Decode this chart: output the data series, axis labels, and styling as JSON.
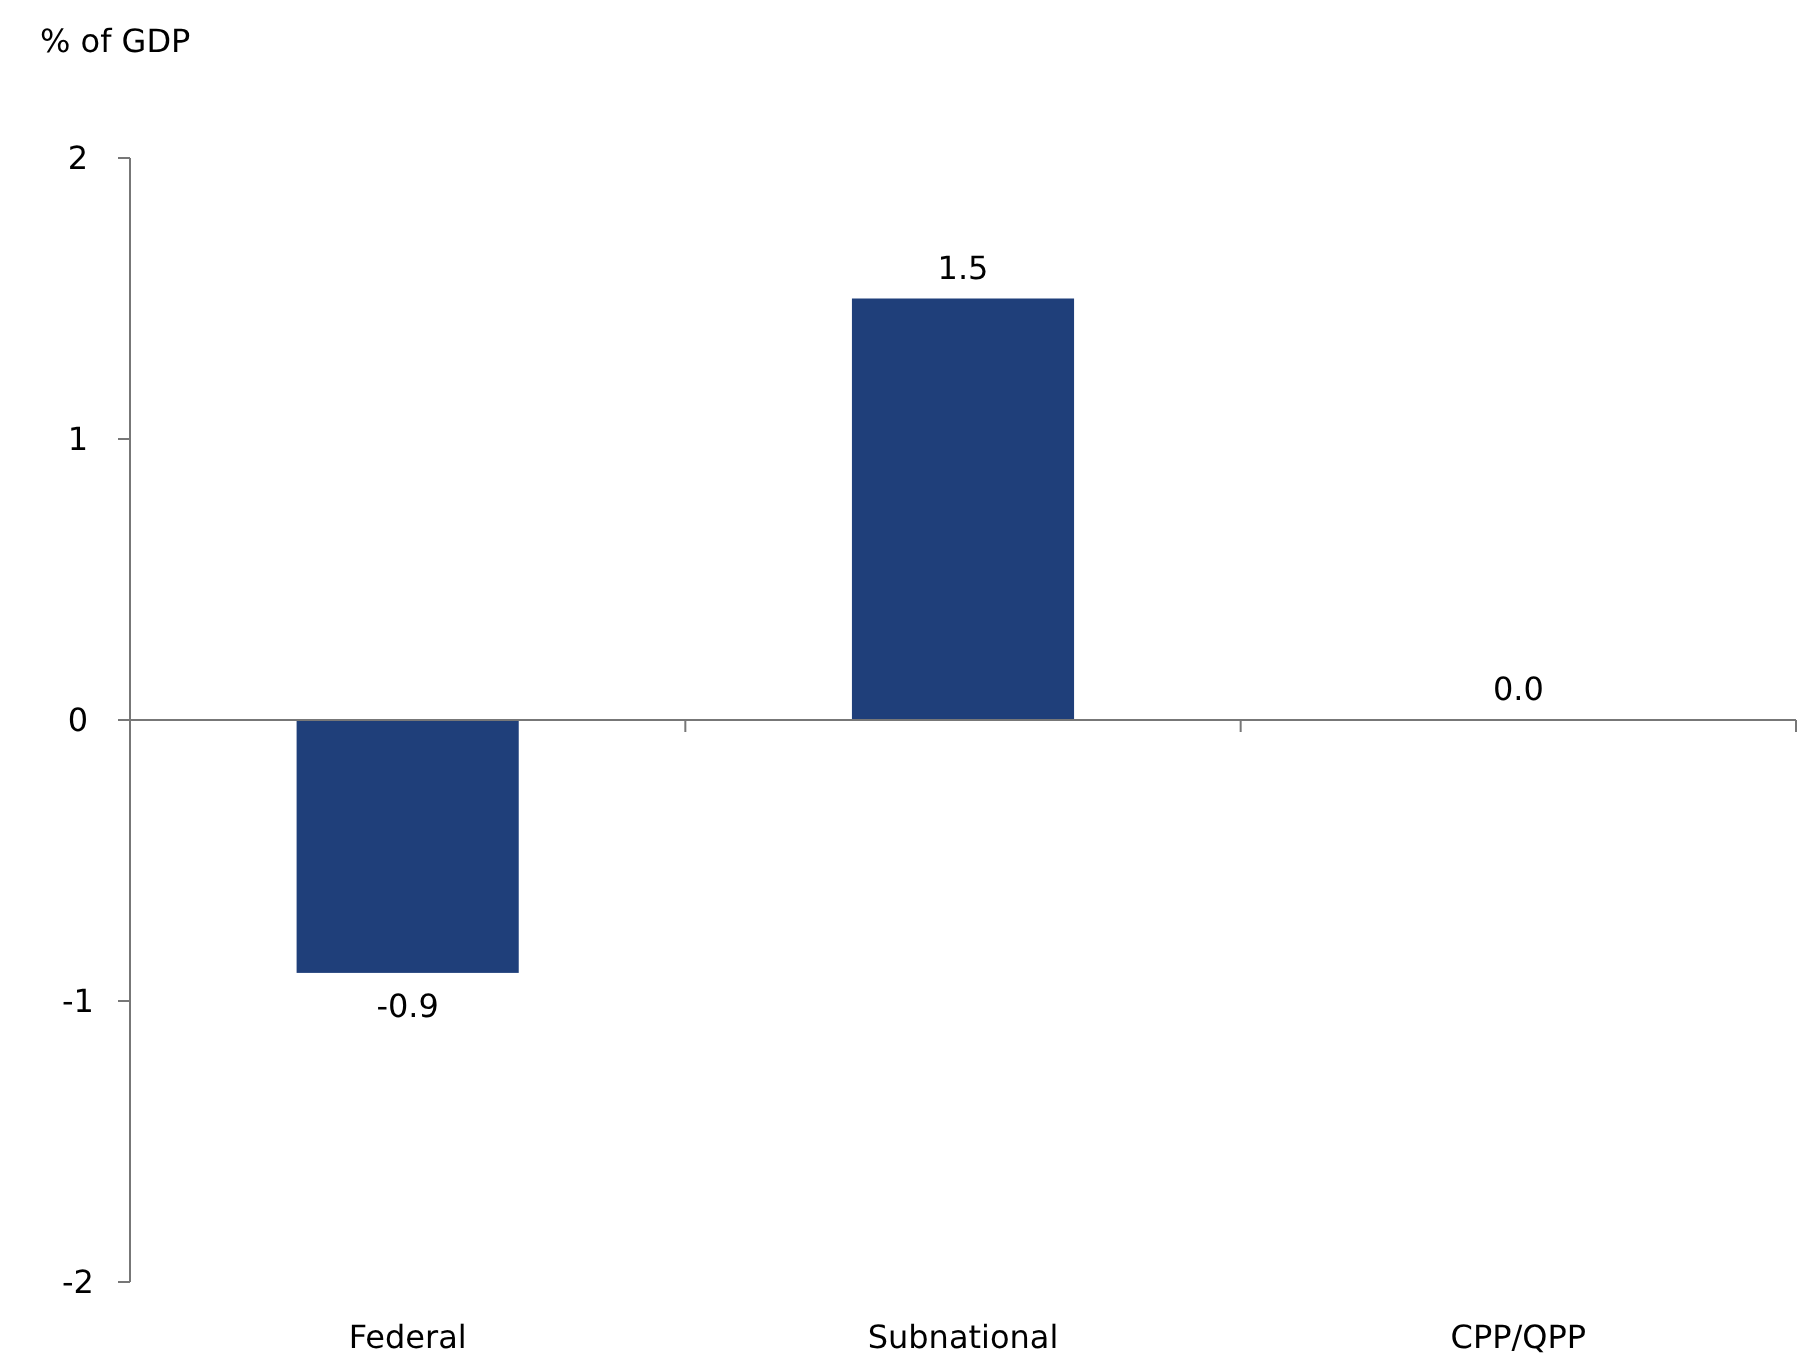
{
  "chart_data": {
    "type": "bar",
    "ylabel": "% of GDP",
    "categories": [
      "Federal",
      "Subnational",
      "CPP/QPP"
    ],
    "values": [
      -0.9,
      1.5,
      0.0
    ],
    "color": "#1f3f7a",
    "value_labels": [
      "-0.9",
      "1.5",
      "0.0"
    ],
    "ylim": [
      -2,
      2
    ],
    "yticks": [
      -2,
      -1,
      0,
      1,
      2
    ]
  }
}
